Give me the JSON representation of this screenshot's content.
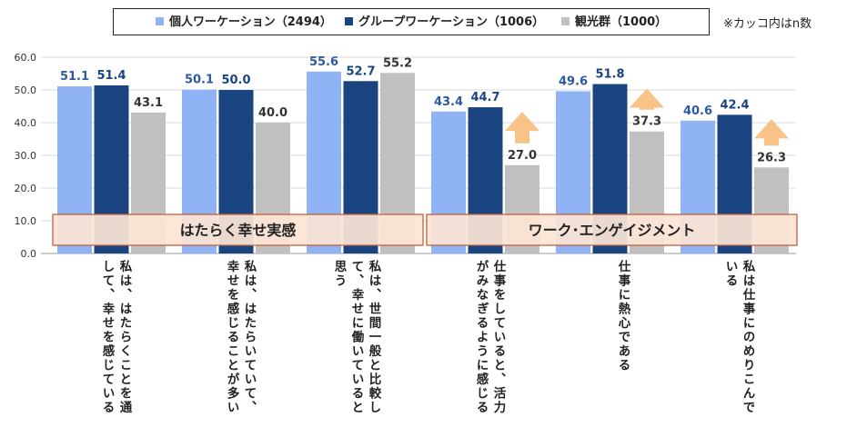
{
  "legend": {
    "items": [
      "個人ワーケーション（2494）",
      "グループワーケーション（1006）",
      "観光群（1000）"
    ],
    "note": "※カッコ内はn数"
  },
  "chart_data": {
    "type": "bar",
    "categories": [
      "私は、はたらくことを通して、幸せを感じている",
      "私は、はたらいていて、幸せを感じることが多い",
      "私は、世間一般と比較して、幸せに働いていると思う",
      "仕事をしていると、活力がみなぎるように感じる",
      "仕事に熱心である",
      "私は仕事にのめりこんでいる"
    ],
    "series": [
      {
        "name": "個人ワーケーション（2494）",
        "values": [
          51.1,
          50.1,
          55.6,
          43.4,
          49.6,
          40.6
        ],
        "color": "#8fb3f5"
      },
      {
        "name": "グループワーケーション（1006）",
        "values": [
          51.4,
          50.0,
          52.7,
          44.7,
          51.8,
          42.4
        ],
        "color": "#1a4480"
      },
      {
        "name": "観光群（1000）",
        "values": [
          43.1,
          40.0,
          55.2,
          27.0,
          37.3,
          26.3
        ],
        "color": "#c0c0c0"
      }
    ],
    "label_colors": [
      "#2d5a9e",
      "#1a4480",
      "#333333"
    ],
    "ylim": [
      0,
      60
    ],
    "yticks": [
      "0.0",
      "10.0",
      "20.0",
      "30.0",
      "40.0",
      "50.0",
      "60.0"
    ],
    "grid": true,
    "group_bands": [
      {
        "label": "はたらく幸せ実感",
        "categories": [
          0,
          1,
          2
        ]
      },
      {
        "label": "ワーク･エンゲイジメント",
        "categories": [
          3,
          4,
          5
        ]
      }
    ],
    "band_color": "#fbe4d5",
    "band_border": "#c2613b",
    "highlight_arrows": {
      "categories": [
        3,
        4,
        5
      ],
      "color": "#f9c287"
    }
  }
}
